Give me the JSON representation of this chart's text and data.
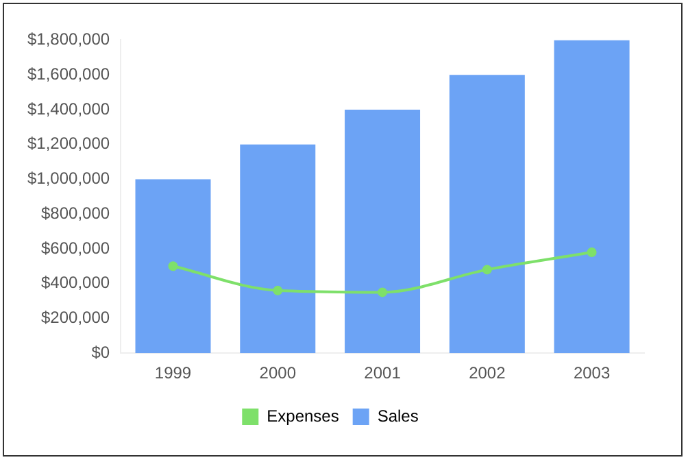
{
  "chart_data": {
    "type": "bar",
    "categories": [
      "1999",
      "2000",
      "2001",
      "2002",
      "2003"
    ],
    "series": [
      {
        "name": "Expenses",
        "type": "line",
        "color": "#7ee06a",
        "values": [
          500000,
          360000,
          350000,
          480000,
          580000
        ]
      },
      {
        "name": "Sales",
        "color": "#6ca3f5",
        "values": [
          1000000,
          1200000,
          1400000,
          1600000,
          1800000
        ]
      }
    ],
    "ylim": [
      0,
      1800000
    ],
    "yticks": [
      {
        "value": 0,
        "label": "$0"
      },
      {
        "value": 200000,
        "label": "$200,000"
      },
      {
        "value": 400000,
        "label": "$400,000"
      },
      {
        "value": 600000,
        "label": "$600,000"
      },
      {
        "value": 800000,
        "label": "$800,000"
      },
      {
        "value": 1000000,
        "label": "$1,000,000"
      },
      {
        "value": 1200000,
        "label": "$1,200,000"
      },
      {
        "value": 1400000,
        "label": "$1,400,000"
      },
      {
        "value": 1600000,
        "label": "$1,600,000"
      },
      {
        "value": 1800000,
        "label": "$1,800,000"
      }
    ],
    "grid": false,
    "legend": "bottom",
    "marker": "circle"
  }
}
